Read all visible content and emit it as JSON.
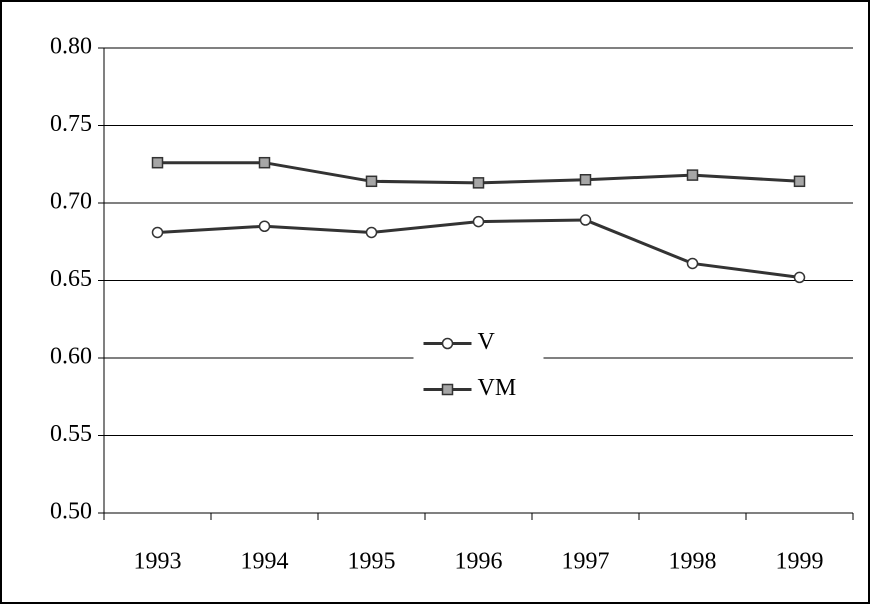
{
  "chart_data": {
    "type": "line",
    "categories": [
      "1993",
      "1994",
      "1995",
      "1996",
      "1997",
      "1998",
      "1999"
    ],
    "series": [
      {
        "name": "V",
        "color": "#333333",
        "marker": "circle",
        "values": [
          0.681,
          0.685,
          0.681,
          0.688,
          0.689,
          0.661,
          0.652
        ]
      },
      {
        "name": "VM",
        "color": "#333333",
        "marker": "square",
        "values": [
          0.726,
          0.726,
          0.714,
          0.713,
          0.715,
          0.718,
          0.714
        ]
      }
    ],
    "ylim": [
      0.5,
      0.8
    ],
    "yticks": [
      {
        "value": 0.5,
        "label": "0.50"
      },
      {
        "value": 0.55,
        "label": "0.55"
      },
      {
        "value": 0.6,
        "label": "0.60"
      },
      {
        "value": 0.65,
        "label": "0.65"
      },
      {
        "value": 0.7,
        "label": "0.70"
      },
      {
        "value": 0.75,
        "label": "0.75"
      },
      {
        "value": 0.8,
        "label": "0.80"
      }
    ],
    "grid": true,
    "legend": "center"
  }
}
